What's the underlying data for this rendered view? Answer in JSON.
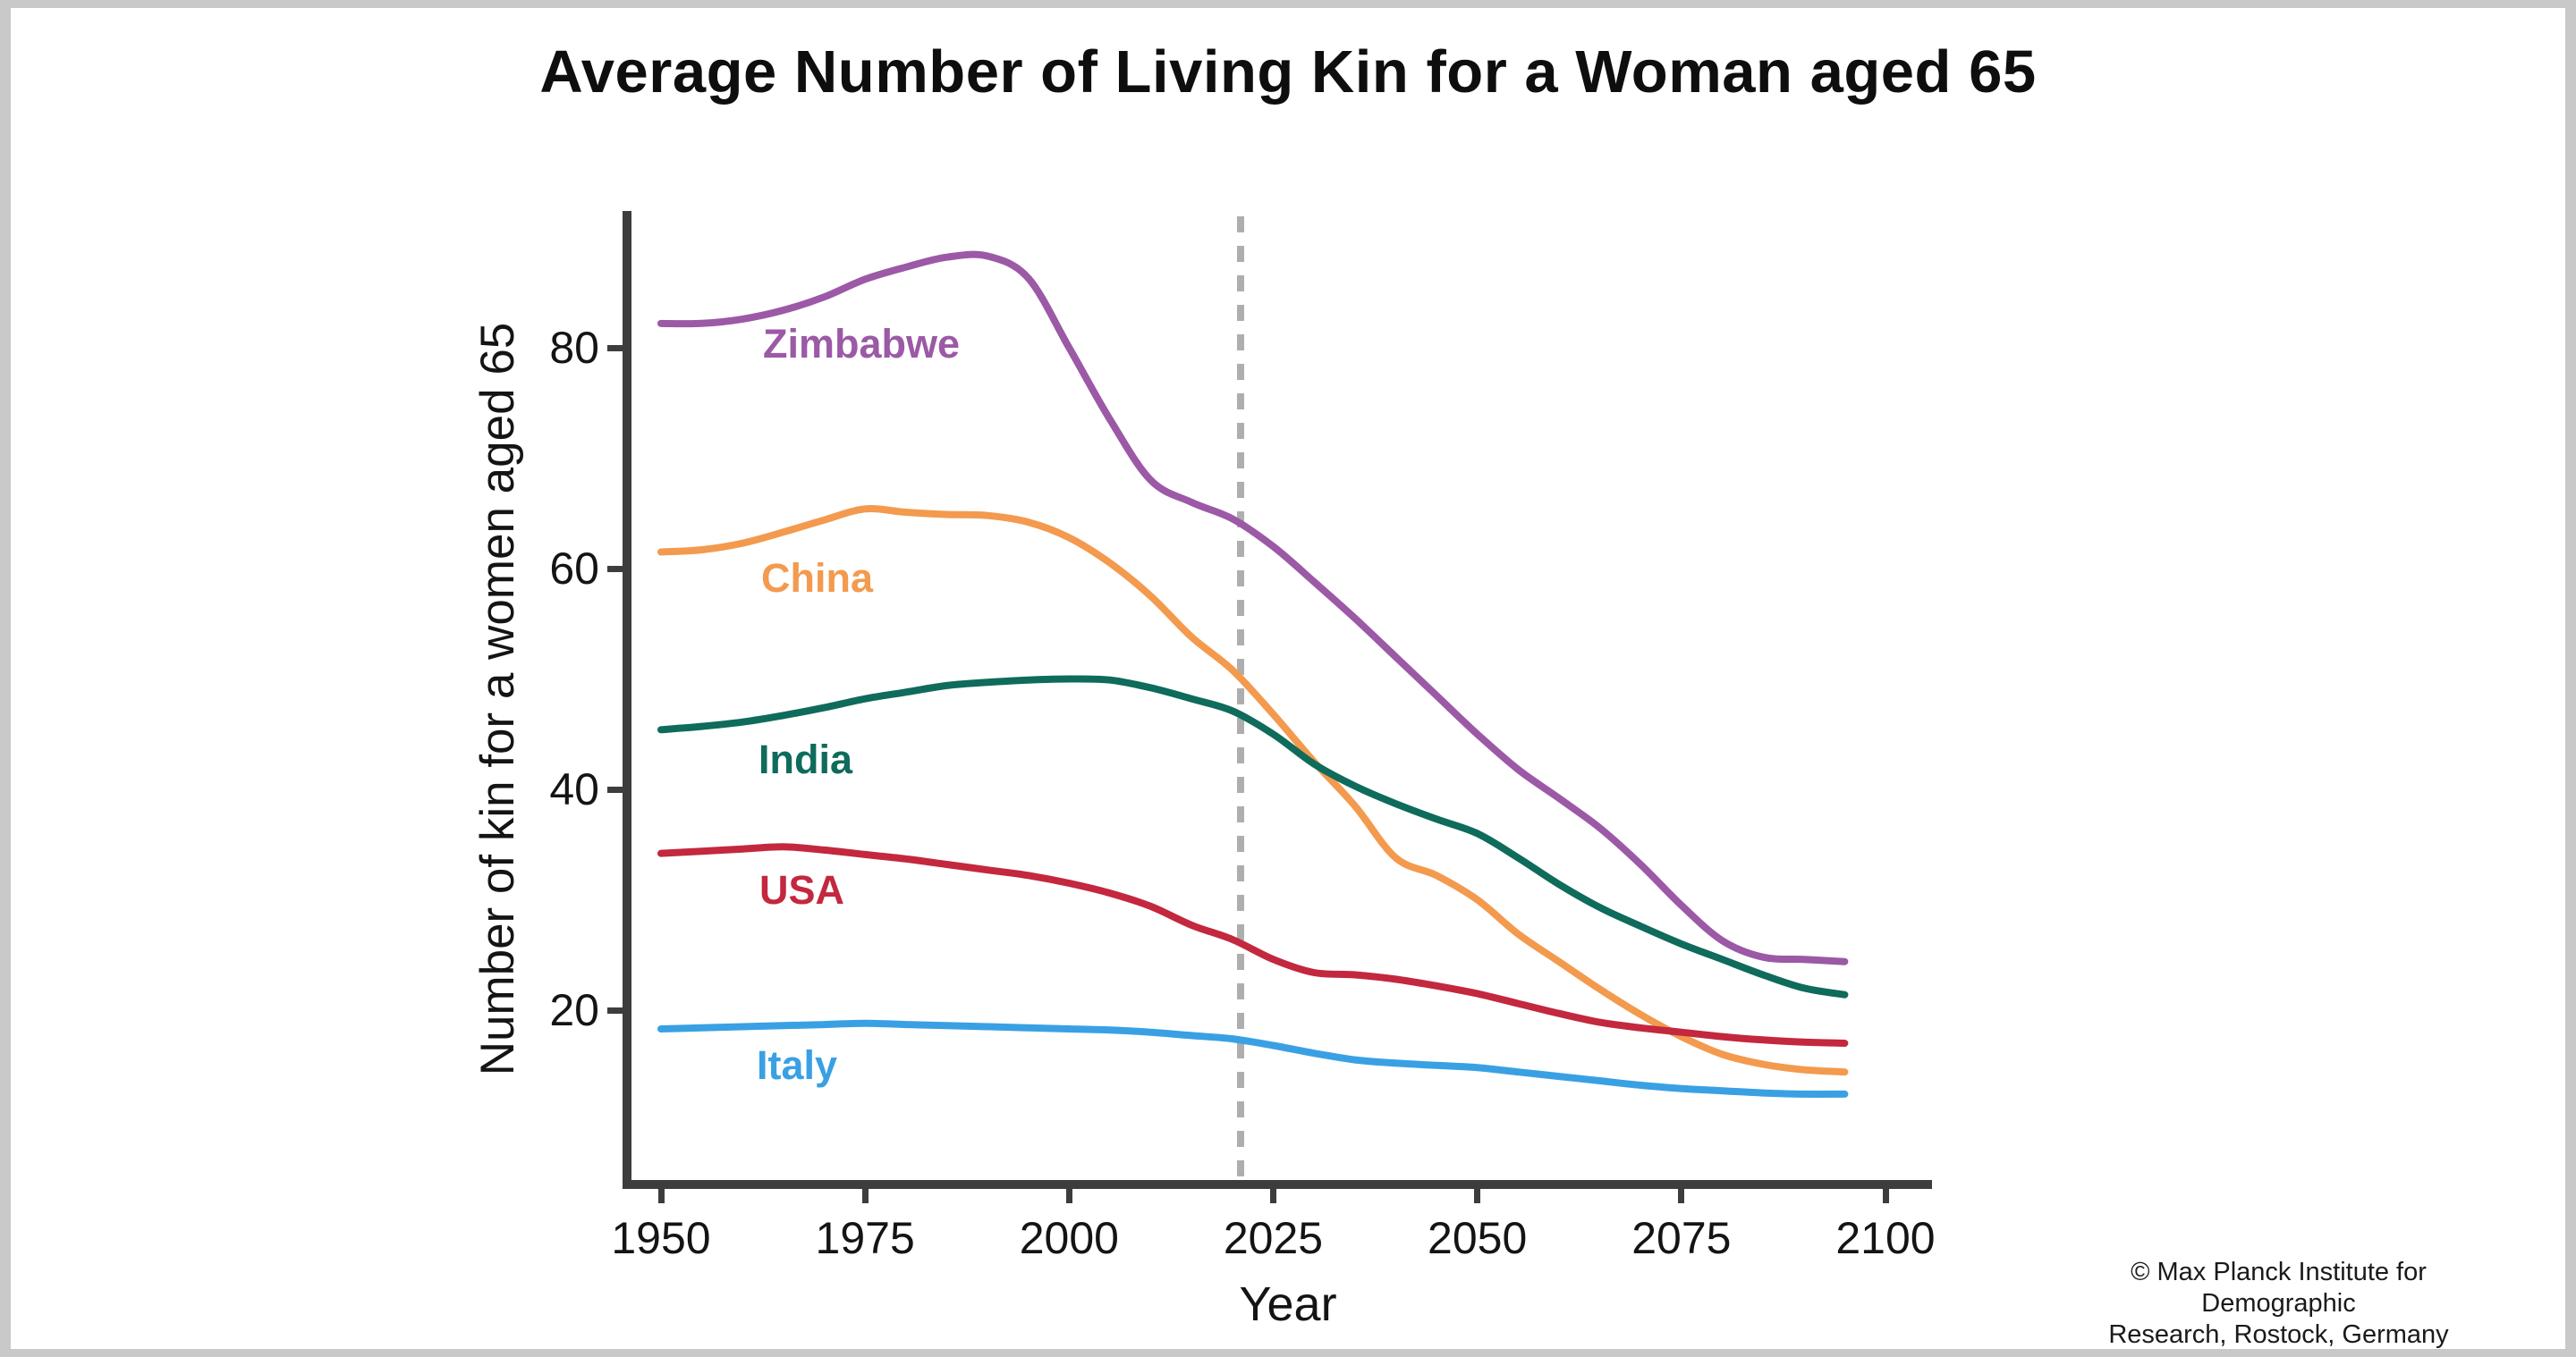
{
  "title": "Average Number of Living Kin for a Woman aged 65",
  "axes": {
    "x": {
      "label": "Year",
      "ticks": [
        1950,
        1975,
        2000,
        2025,
        2050,
        2075,
        2100
      ]
    },
    "y": {
      "label": "Number of kin for a women aged 65",
      "ticks": [
        20,
        40,
        60,
        80
      ]
    }
  },
  "footer": {
    "copyright_line1": "© Max Planck Institute for Demographic",
    "copyright_line2": "Research, Rostock, Germany"
  },
  "colors": {
    "axis": "#3d3d3d",
    "dashed_line": "#aeaeae",
    "frame": "#c9c9c9",
    "zimbabwe": "#9B59A6",
    "china": "#F39A4E",
    "india": "#0F6B5B",
    "usa": "#C3283E",
    "italy": "#3AA0E4"
  },
  "chart_data": {
    "type": "line",
    "title": "Average Number of Living Kin for a Woman aged 65",
    "xlabel": "Year",
    "ylabel": "Number of kin for a women aged 65",
    "x_ticks": [
      1950,
      1975,
      2000,
      2025,
      2050,
      2075,
      2100
    ],
    "y_ticks": [
      20,
      40,
      60,
      80
    ],
    "xlim": [
      1944,
      2106
    ],
    "ylim": [
      5,
      92
    ],
    "grid": false,
    "legend_position": "inline-line-labels",
    "dashed_vline_x": 2021,
    "years": [
      1950,
      1955,
      1960,
      1965,
      1970,
      1975,
      1980,
      1985,
      1990,
      1995,
      2000,
      2005,
      2010,
      2015,
      2020,
      2025,
      2030,
      2035,
      2040,
      2045,
      2050,
      2055,
      2060,
      2065,
      2070,
      2075,
      2080,
      2085,
      2090,
      2095
    ],
    "series": [
      {
        "name": "Zimbabwe",
        "color": "#9B59A6",
        "values": [
          82.2,
          82.2,
          82.6,
          83.4,
          84.6,
          86.2,
          87.3,
          88.2,
          88.3,
          86.3,
          80.0,
          73.5,
          68.0,
          66.0,
          64.5,
          62.0,
          58.8,
          55.5,
          52.0,
          48.5,
          45.0,
          41.8,
          39.2,
          36.5,
          33.2,
          29.5,
          26.3,
          24.8,
          24.6,
          24.4
        ]
      },
      {
        "name": "China",
        "color": "#F39A4E",
        "values": [
          61.5,
          61.7,
          62.3,
          63.3,
          64.4,
          65.4,
          65.1,
          64.9,
          64.8,
          64.2,
          62.8,
          60.5,
          57.5,
          53.8,
          50.8,
          46.8,
          42.5,
          38.5,
          33.8,
          32.2,
          30.0,
          26.9,
          24.4,
          21.9,
          19.6,
          17.6,
          16.0,
          15.1,
          14.6,
          14.4
        ]
      },
      {
        "name": "India",
        "color": "#0F6B5B",
        "values": [
          45.4,
          45.7,
          46.1,
          46.7,
          47.4,
          48.2,
          48.8,
          49.4,
          49.7,
          49.9,
          50.0,
          49.9,
          49.2,
          48.2,
          47.1,
          45.0,
          42.3,
          40.3,
          38.7,
          37.3,
          36.0,
          33.8,
          31.4,
          29.3,
          27.6,
          26.0,
          24.6,
          23.2,
          22.0,
          21.4
        ]
      },
      {
        "name": "USA",
        "color": "#C3283E",
        "values": [
          34.2,
          34.4,
          34.6,
          34.8,
          34.5,
          34.1,
          33.7,
          33.2,
          32.7,
          32.2,
          31.5,
          30.6,
          29.4,
          27.7,
          26.4,
          24.6,
          23.4,
          23.2,
          22.8,
          22.2,
          21.5,
          20.6,
          19.7,
          18.9,
          18.4,
          18.0,
          17.6,
          17.3,
          17.1,
          17.0
        ]
      },
      {
        "name": "Italy",
        "color": "#3AA0E4",
        "values": [
          18.3,
          18.4,
          18.5,
          18.6,
          18.7,
          18.8,
          18.7,
          18.6,
          18.5,
          18.4,
          18.3,
          18.2,
          18.0,
          17.7,
          17.4,
          16.8,
          16.1,
          15.5,
          15.2,
          15.0,
          14.8,
          14.4,
          14.0,
          13.6,
          13.2,
          12.9,
          12.7,
          12.5,
          12.4,
          12.4
        ]
      }
    ]
  }
}
